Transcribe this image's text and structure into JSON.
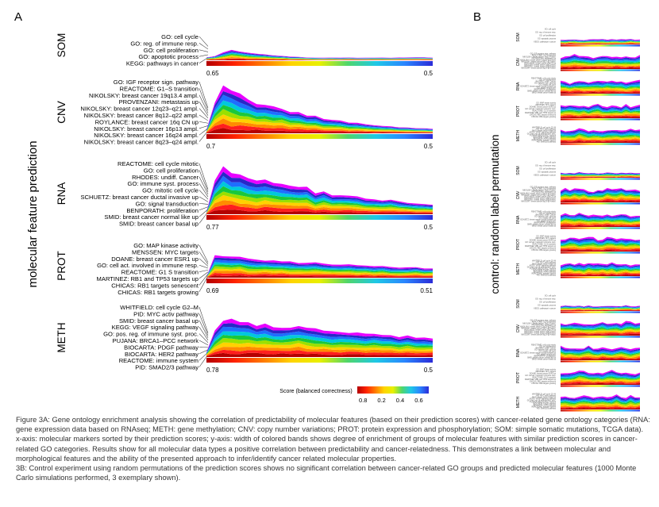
{
  "figure": {
    "panel_a_label": "A",
    "panel_b_label": "B",
    "y_axis_title": "molecular feature prediction",
    "b_axis_title": "control: random label permutation",
    "colorbar_title": "Score (balanced correctness)",
    "colorbar_ticks": [
      "0.8",
      "0.2",
      "0.4",
      "0.6"
    ],
    "colorbar_colors": [
      "#b40000",
      "#ff2200",
      "#ff7a00",
      "#ffd400",
      "#e8f000",
      "#4fd66b",
      "#1ec8e6",
      "#2a86ff",
      "#2b2bd8"
    ],
    "band_colors": [
      "#b40000",
      "#ff1e1e",
      "#ff8c00",
      "#ffd200",
      "#9be000",
      "#19c83c",
      "#00c8dc",
      "#1e6eff",
      "#2828c8",
      "#e800ff"
    ]
  },
  "panels": [
    {
      "name": "SOM",
      "x_start": "0.65",
      "x_end": "0.5",
      "labels": [
        "GO: cell cycle",
        "GO: reg. of immune resp.",
        "GO: cell proliferation",
        "GO: apoptotic process",
        "KEGG: pathways in cancer"
      ]
    },
    {
      "name": "CNV",
      "x_start": "0.7",
      "x_end": "0.5",
      "labels": [
        "GO: IGF receptor sign. pathway",
        "REACTOME: G1–S transition",
        "NIKOLSKY: breast cancer 19q13.4 ampl.",
        "PROVENZANI: metastasis up",
        "NIKOLSKY: breast cancer 12q23–q21 ampl.",
        "NIKOLSKY: breast cancer 8q12–q22 ampl.",
        "ROYLANCE: breast cancer 16q CN up",
        "NIKOLSKY: breast cancer 16p13 ampl.",
        "NIKOLSKY: breast cancer 16q24 ampl.",
        "NIKOLSKY: breast cancer 8q23–q24 ampl."
      ]
    },
    {
      "name": "RNA",
      "x_start": "0.77",
      "x_end": "0.5",
      "labels": [
        "REACTOME: cell cycle mitotic",
        "GO: cell proliferation",
        "RHODES: undiff. Cancer",
        "GO: immune syst. process",
        "GO: mitotic cell cycle",
        "SCHUETZ: breast cancer ductal invasive up",
        "GO: signal transduction",
        "BENPORATH: proliferation",
        "SMID: breast cancer normal like up",
        "SMID: breast cancer basal up"
      ]
    },
    {
      "name": "PROT",
      "x_start": "0.69",
      "x_end": "0.51",
      "labels": [
        "GO: MAP kinase activity",
        "MENSSEN: MYC targets",
        "DOANE: breast cancer ESR1 up",
        "GO: cell act. involved in immune resp.",
        "REACTOME: G1 S transition",
        "MARTINEZ: RB1 and TP53 targets up",
        "CHICAS: RB1 targets senescent",
        "CHICAS: RB1 targets growing"
      ]
    },
    {
      "name": "METH",
      "x_start": "0.78",
      "x_end": "0.5",
      "labels": [
        "WHITFIELD: cell cycle G2–M",
        "PID: MYC activ pathway",
        "SMID: breast cancer basal up",
        "KEGG: VEGF signaling pathway",
        "GO: pos. reg. of immune syst. proc.",
        "PUJANA: BRCA1–PCC network",
        "BIOCARTA: PDGF pathway",
        "BIOCARTA: HER2 pathway",
        "REACTOME: immune system",
        "PID: SMAD2/3 pathway"
      ]
    }
  ],
  "caption": {
    "p1": "Figure 3A: Gene ontology enrichment analysis showing the correlation of predictability of molecular features (based on their prediction scores) with cancer-related gene ontology categories (RNA: gene expression data based on RNAseq; METH: gene methylation; CNV: copy number variations; PROT: protein expression and phosphorylation; SOM: simple somatic mutations, TCGA data). x-axis: molecular markers sorted by their prediction scores; y-axis: width of colored bands shows degree of enrichment of groups of molecular features with similar prediction scores in cancer-related GO categories. Results show for all molecular data types a positive correlation between predictability and cancer-relatedness. This demonstrates a link between molecular and morphological features and the ability of the presented approach to infer/identify cancer related molecular properties.",
    "p2": "3B: Control experiment using random permutations of the prediction scores shows no significant correlation between cancer-related GO groups and predicted molecular features (1000 Monte Carlo simulations performed, 3 exemplary shown)."
  }
}
